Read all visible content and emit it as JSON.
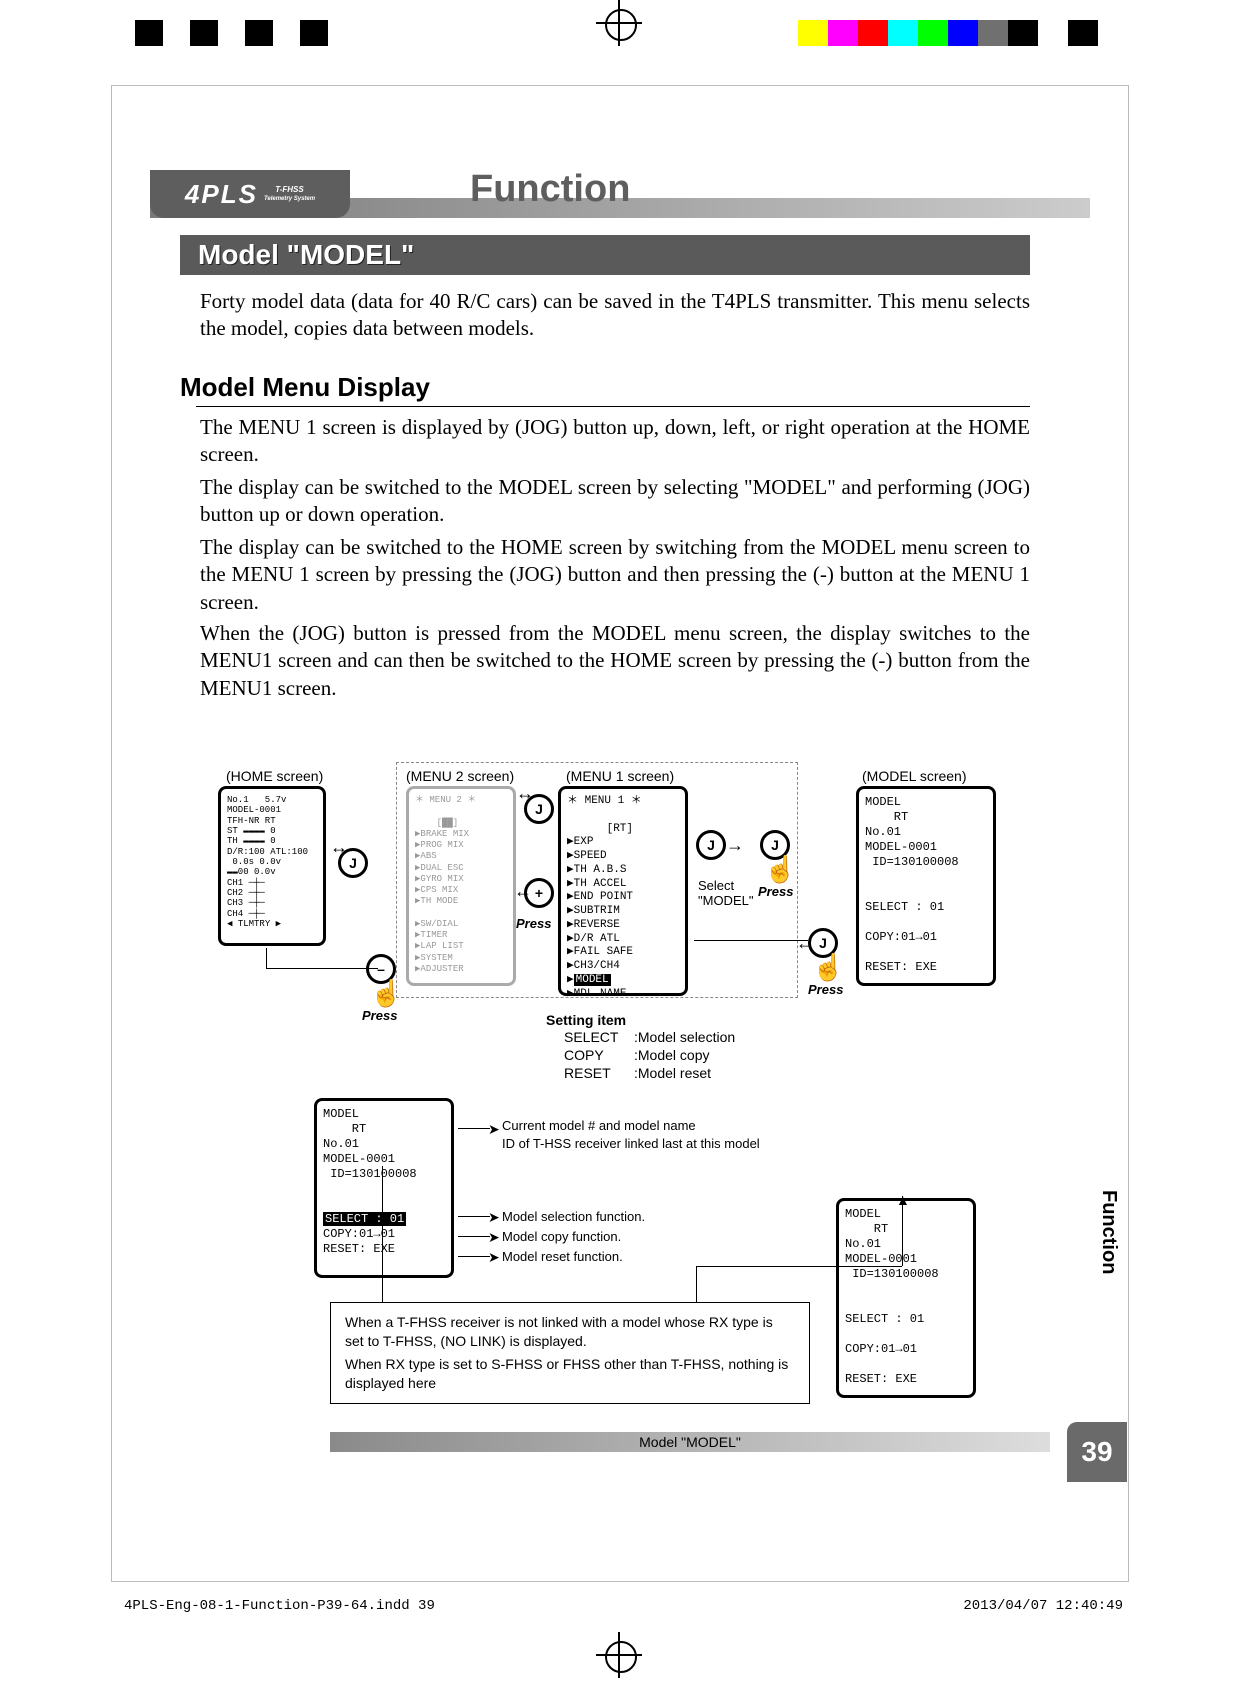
{
  "colorbars": {
    "left": [
      "#000000",
      "#ffffff",
      "#000000",
      "#ffffff",
      "#000000",
      "#ffffff",
      "#000000",
      "#ffffff"
    ],
    "right": [
      "#ffffff",
      "#ffff00",
      "#ff00ff",
      "#ff0000",
      "#00ffff",
      "#00ff00",
      "#0000ff",
      "#707070",
      "#000000",
      "#ffffff",
      "#000000",
      "#ffffff"
    ]
  },
  "header": {
    "logo_text": "4PLS",
    "logo_sub1": "T-FHSS",
    "logo_sub2": "Telemetry System",
    "title": "Function"
  },
  "section": {
    "title": "Model  \"MODEL\"",
    "intro": "Forty model data (data for 40 R/C cars) can be saved in the T4PLS transmitter. This menu selects the model, copies data between models."
  },
  "subsection": {
    "title": "Model Menu Display",
    "p1": "The MENU 1 screen is displayed by (JOG) button up, down, left, or right operation at the HOME screen.",
    "p2": "The display can be switched to the MODEL screen by selecting \"MODEL\" and performing (JOG) button up or down operation.",
    "p3": "The display can be switched to the HOME screen by switching from the MODEL menu screen to the MENU 1 screen by pressing the (JOG) button and then pressing the (-) button at the MENU 1 screen.",
    "p4": "When the (JOG) button is pressed from the MODEL menu screen, the display switches to the MENU1 screen and can then be switched to the HOME screen by pressing the (-) button from the MENU1 screen."
  },
  "diagram": {
    "labels": {
      "home": "(HOME screen)",
      "menu2": "(MENU 2 screen)",
      "menu1": "(MENU 1 screen)",
      "model": "(MODEL screen)",
      "select_model": "Select \"MODEL\"",
      "press": "Press",
      "setting_item_head": "Setting item",
      "setting_items": [
        {
          "k": "SELECT",
          "v": ":Model selection"
        },
        {
          "k": "COPY",
          "v": ":Model copy"
        },
        {
          "k": "RESET",
          "v": ":Model reset"
        }
      ],
      "note_current": "Current model # and model name",
      "note_id": "ID of T-HSS receiver linked last at this model",
      "note_select": "Model selection function.",
      "note_copy": "Model copy function.",
      "note_reset": "Model reset function.",
      "infobox_l1": "When a T-FHSS receiver is not linked with a model whose RX type is set to T-FHSS, (NO LINK) is displayed.",
      "infobox_l2": "When RX type is set to S-FHSS or FHSS other than T-FHSS, nothing is displayed here"
    },
    "screens": {
      "home_lines": "No.1   5.7v\nMODEL-0001\nTFH-NR RT\nST ▬▬▬▬ 0\nTH ▬▬▬▬ 0\nD/R:100 ATL:100\n 0.0s 0.0v\n▬▬00 0.0v\nCH1 ─┼─\nCH2 ─┼─\nCH3 ─┼─\nCH4 ─┼─\n◀ TLMTRY ▶",
      "menu2_lines": "＊ MENU 2 ＊\n\n    [██]\n▶BRAKE MIX\n▶PROG MIX\n▶ABS\n▶DUAL ESC\n▶GYRO MIX\n▶CPS MIX\n▶TH MODE\n\n▶SW/DIAL\n▶TIMER\n▶LAP LIST\n▶SYSTEM\n▶ADJUSTER",
      "menu1_lines": "＊ MENU 1 ＊\n\n      [RT]\n▶EXP\n▶SPEED\n▶TH A.B.S\n▶TH ACCEL\n▶END POINT\n▶SUBTRIM\n▶REVERSE\n▶D/R ATL\n▶FAIL SAFE\n▶CH3/CH4\n",
      "menu1_sel1": "MODEL",
      "menu1_sel2": "▶MDL NAME",
      "model_lines": "MODEL\n    RT\nNo.01\nMODEL-0001\n ID=130100008\n\n\nSELECT : 01\n\nCOPY:01→01\n\nRESET: EXE",
      "model2_head": "MODEL\n    RT\nNo.01\nMODEL-0001\n ID=130100008",
      "model2_sel": "SELECT : 01",
      "model2_copy": "COPY:01→01",
      "model2_reset": "RESET: EXE",
      "model3_lines": "MODEL\n    RT\nNo.01\nMODEL-0001\n ID=130100008\n\n\nSELECT : 01\n\nCOPY:01→01\n\nRESET: EXE"
    }
  },
  "footer": {
    "caption": "Model  \"MODEL\""
  },
  "sidetab": {
    "text": "Function"
  },
  "pagenum": "39",
  "imprint": {
    "file": "4PLS-Eng-08-1-Function-P39-64.indd   39",
    "time": "2013/04/07   12:40:49"
  },
  "colors": {
    "barstart": "#7a7a7a",
    "barend": "#cccccc",
    "titlegrey": "#5e5e5e",
    "pagetab": "#6a6a6a"
  }
}
